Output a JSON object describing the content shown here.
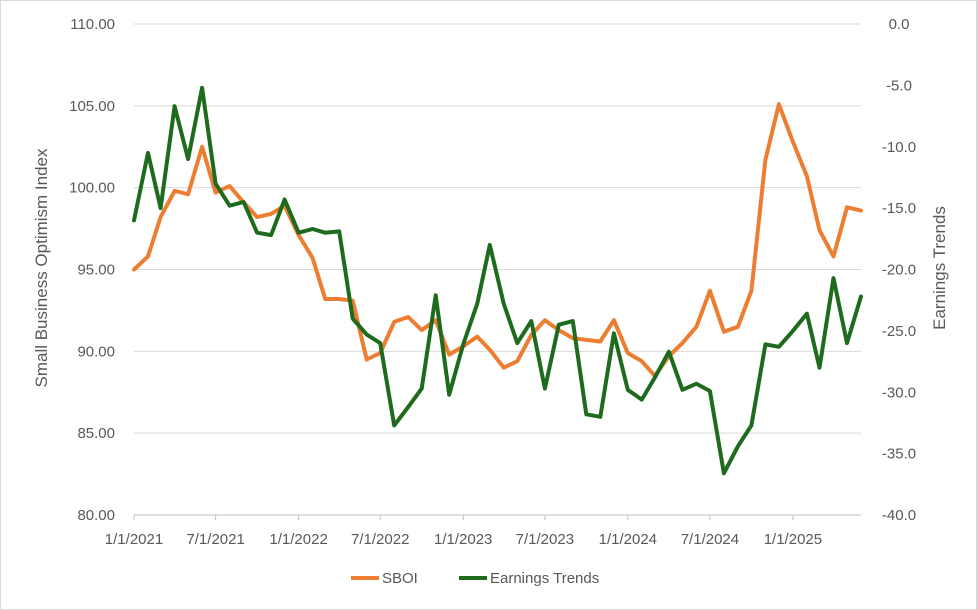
{
  "chart_data": {
    "type": "line",
    "y_left_label": "Small Business Optimism Index",
    "y_right_label": "Earnings Trends",
    "y_left_lim": [
      80,
      110
    ],
    "y_right_lim": [
      -40,
      0
    ],
    "y_left_ticks": [
      "80.00",
      "85.00",
      "90.00",
      "95.00",
      "100.00",
      "105.00",
      "110.00"
    ],
    "y_right_ticks": [
      "-40.0",
      "-35.0",
      "-30.0",
      "-25.0",
      "-20.0",
      "-15.0",
      "-10.0",
      "-5.0",
      "0.0"
    ],
    "x_ticks": [
      "1/1/2021",
      "7/1/2021",
      "1/1/2022",
      "7/1/2022",
      "1/1/2023",
      "7/1/2023",
      "1/1/2024",
      "7/1/2024",
      "1/1/2025"
    ],
    "x_start": "2021-01",
    "x_end": "2025-06",
    "grid": "horizontal",
    "legend": "bottom",
    "series": [
      {
        "name": "SBOI",
        "axis": "left",
        "color": "#ED7D31",
        "values": [
          95.0,
          95.8,
          98.2,
          99.8,
          99.6,
          102.5,
          99.7,
          100.1,
          99.1,
          98.2,
          98.4,
          98.9,
          97.1,
          95.7,
          93.2,
          93.2,
          93.1,
          89.5,
          89.9,
          91.8,
          92.1,
          91.3,
          91.9,
          89.8,
          90.3,
          90.9,
          90.1,
          89.0,
          89.4,
          91.0,
          91.9,
          91.3,
          90.8,
          90.7,
          90.6,
          91.9,
          89.9,
          89.4,
          88.5,
          89.7,
          90.5,
          91.5,
          93.7,
          91.2,
          91.5,
          93.7,
          101.7,
          105.1,
          102.8,
          100.7,
          97.4,
          95.8,
          98.8,
          98.6
        ]
      },
      {
        "name": "Earnings Trends",
        "axis": "right",
        "color": "#1E6B1E",
        "values": [
          -16,
          -10.5,
          -15,
          -6.7,
          -11,
          -5.2,
          -13,
          -14.8,
          -14.5,
          -17,
          -17.2,
          -14.3,
          -17,
          -16.7,
          -17,
          -16.9,
          -24,
          -25.3,
          -26,
          -32.7,
          -31.2,
          -29.7,
          -22.1,
          -30.2,
          -26.1,
          -22.8,
          -18,
          -22.8,
          -26,
          -24.2,
          -29.7,
          -24.5,
          -24.2,
          -31.8,
          -32,
          -25.2,
          -29.8,
          -30.6,
          -28.8,
          -26.7,
          -29.8,
          -29.3,
          -29.9,
          -36.6,
          -34.4,
          -32.7,
          -26.1,
          -26.3,
          -25,
          -23.6,
          -28,
          -20.7,
          -26,
          -22.2
        ]
      }
    ]
  }
}
